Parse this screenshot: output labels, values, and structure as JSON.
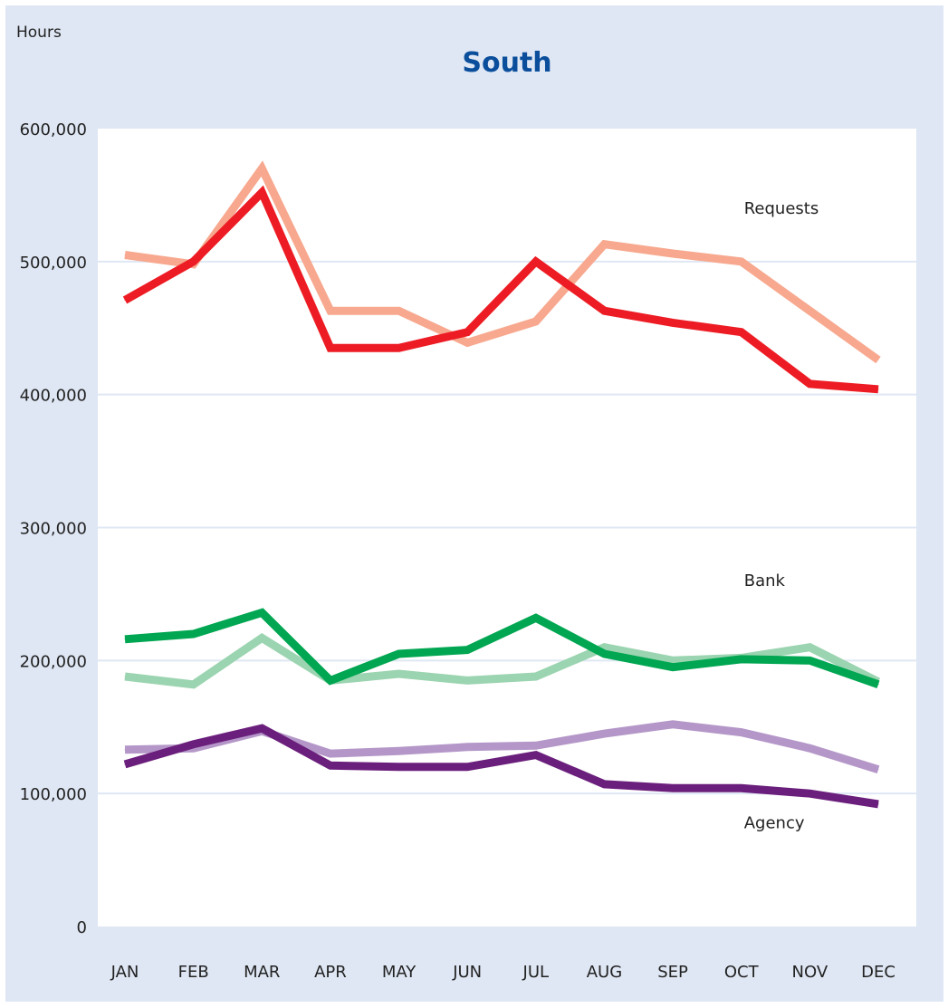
{
  "chart_data": {
    "type": "line",
    "title": "South",
    "ylabel": "Hours",
    "xlabel": "",
    "ylim": [
      0,
      600000
    ],
    "yticks": [
      0,
      100000,
      200000,
      300000,
      400000,
      500000,
      600000
    ],
    "ytick_labels": [
      "0",
      "100,000",
      "200,000",
      "300,000",
      "400,000",
      "500,000",
      "600,000"
    ],
    "categories": [
      "JAN",
      "FEB",
      "MAR",
      "APR",
      "MAY",
      "JUN",
      "JUL",
      "AUG",
      "SEP",
      "OCT",
      "NOV",
      "DEC"
    ],
    "grid": "horizontal",
    "series": [
      {
        "color": "#f7a88e",
        "values": [
          505000,
          498000,
          570000,
          463000,
          463000,
          439000,
          455000,
          513000,
          506000,
          500000,
          463000,
          426000
        ]
      },
      {
        "color": "#ed1c24",
        "values": [
          471000,
          500000,
          552000,
          435000,
          435000,
          447000,
          500000,
          463000,
          454000,
          447000,
          408000,
          404000
        ]
      },
      {
        "color": "#9bd4b0",
        "values": [
          188000,
          182000,
          217000,
          185000,
          190000,
          185000,
          188000,
          210000,
          200000,
          202000,
          210000,
          184000
        ]
      },
      {
        "color": "#00a651",
        "values": [
          216000,
          220000,
          236000,
          185000,
          205000,
          208000,
          232000,
          205000,
          195000,
          201000,
          200000,
          182000
        ]
      },
      {
        "color": "#b497c8",
        "values": [
          133000,
          134000,
          147000,
          130000,
          132000,
          135000,
          136000,
          145000,
          152000,
          146000,
          134000,
          118000
        ]
      },
      {
        "color": "#6b1f7c",
        "values": [
          122000,
          137000,
          149000,
          121000,
          120000,
          120000,
          129000,
          107000,
          104000,
          104000,
          100000,
          92000
        ]
      }
    ],
    "annotations": [
      {
        "text": "Requests",
        "x": "OCT",
        "y": 540000
      },
      {
        "text": "Bank",
        "x": "OCT",
        "y": 260000
      },
      {
        "text": "Agency",
        "x": "OCT",
        "y": 78000
      }
    ]
  }
}
